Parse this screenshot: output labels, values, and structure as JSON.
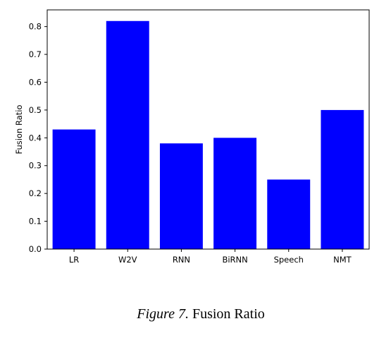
{
  "chart_data": {
    "type": "bar",
    "categories": [
      "LR",
      "W2V",
      "RNN",
      "BiRNN",
      "Speech",
      "NMT"
    ],
    "values": [
      0.43,
      0.82,
      0.38,
      0.4,
      0.25,
      0.5
    ],
    "title": "",
    "xlabel": "",
    "ylabel": "Fusion Ratio",
    "ylim": [
      0,
      0.86
    ],
    "yticks": [
      0.0,
      0.1,
      0.2,
      0.3,
      0.4,
      0.5,
      0.6,
      0.7,
      0.8
    ],
    "ytick_labels": [
      "0.0",
      "0.1",
      "0.2",
      "0.3",
      "0.4",
      "0.5",
      "0.6",
      "0.7",
      "0.8"
    ],
    "bar_color": "#0000ff",
    "grid": false,
    "legend": "none"
  },
  "caption": {
    "figure_label": "Figure 7.",
    "text": "Fusion Ratio"
  }
}
